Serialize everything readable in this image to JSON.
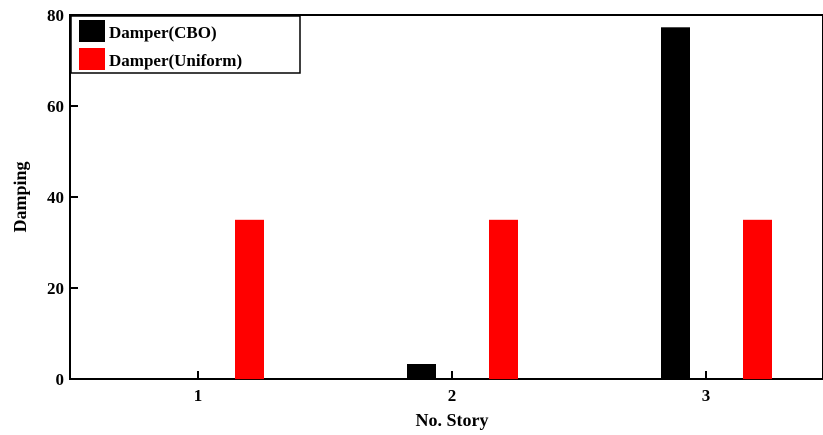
{
  "chart_data": {
    "type": "bar",
    "categories": [
      "1",
      "2",
      "3"
    ],
    "series": [
      {
        "name": "Damper(CBO)",
        "values": [
          0,
          3.3,
          77.3
        ],
        "color": "#000000"
      },
      {
        "name": "Damper(Uniform)",
        "values": [
          35,
          35,
          35
        ],
        "color": "#ff0000"
      }
    ],
    "xlabel": "No. Story",
    "ylabel": "Damping",
    "ylim": [
      0,
      80
    ],
    "yticks": [
      "0",
      "20",
      "40",
      "60",
      "80"
    ],
    "grid": false,
    "legend_position": "top-left"
  }
}
